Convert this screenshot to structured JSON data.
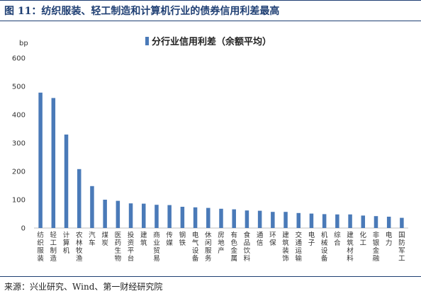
{
  "title": "图 11：纺织服装、轻工制造和计算机行业的债券信用利差最高",
  "source": "来源：兴业研究、Wind、第一财经研究院",
  "colors": {
    "bar": "#4a7ab8",
    "title": "#1f3f73",
    "grid": "#d9d9d9"
  },
  "chart_data": {
    "type": "bar",
    "ylabel": "bp",
    "ylim": [
      0,
      600
    ],
    "yticks": [
      0,
      100,
      200,
      300,
      400,
      500,
      600
    ],
    "grid": false,
    "legend_position": "top-center",
    "categories": [
      "纺织服装",
      "轻工制造",
      "计算机",
      "农林牧渔",
      "汽车",
      "煤炭",
      "医药生物",
      "投资平台",
      "建筑",
      "商业贸易",
      "传媒",
      "钢铁",
      "电气设备",
      "休闲服务",
      "房地产",
      "有色金属",
      "食品饮料",
      "通信",
      "环保",
      "建筑装饰",
      "交通运输",
      "电子",
      "机械设备",
      "综合",
      "建筑材料",
      "化工",
      "非银金融",
      "电力",
      "国防军工"
    ],
    "series": [
      {
        "name": "分行业信用利差（余额平均）",
        "values": [
          478,
          459,
          330,
          208,
          148,
          100,
          96,
          87,
          86,
          82,
          81,
          75,
          73,
          71,
          68,
          66,
          62,
          61,
          57,
          57,
          53,
          51,
          49,
          48,
          48,
          44,
          42,
          40,
          36
        ]
      }
    ]
  }
}
